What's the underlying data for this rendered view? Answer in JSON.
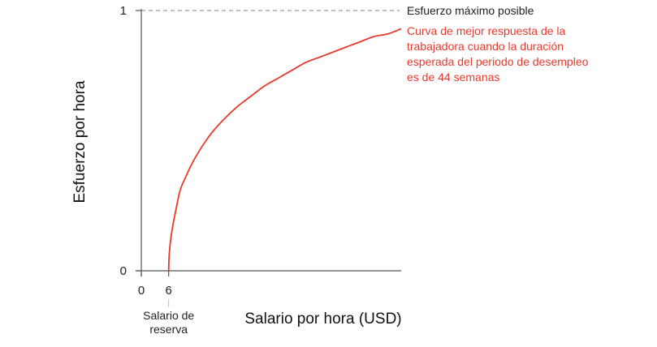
{
  "chart_data": {
    "type": "line",
    "title": "",
    "xlabel": "Salario por hora (USD)",
    "ylabel": "Esfuerzo por hora",
    "xlim": [
      0,
      57
    ],
    "ylim": [
      0,
      1
    ],
    "x_ticks": [
      0,
      6
    ],
    "y_ticks": [
      0,
      1
    ],
    "grid": false,
    "reference_line": {
      "y": 1,
      "label": "Esfuerzo máximo posible",
      "color": "#9a9a9a",
      "style": "dashed"
    },
    "reservation_wage": {
      "x": 6,
      "label_lines": [
        "Salario de",
        "reserva"
      ]
    },
    "series": [
      {
        "label_lines": [
          "Curva de mejor respuesta de la",
          "trabajadora cuando la duración",
          "esperada del periodo de desempleo",
          "es de 44 semanas"
        ],
        "color": "#e8392c",
        "x": [
          6,
          8,
          10,
          12,
          15,
          18,
          21,
          24,
          27,
          30,
          33,
          36,
          39,
          42,
          45,
          48,
          51,
          54,
          57
        ],
        "y": [
          0,
          0.27,
          0.37,
          0.44,
          0.52,
          0.58,
          0.63,
          0.67,
          0.71,
          0.74,
          0.77,
          0.8,
          0.82,
          0.84,
          0.86,
          0.88,
          0.9,
          0.91,
          0.93
        ]
      }
    ]
  },
  "colors": {
    "axis": "#555555",
    "text": "#222222",
    "curve": "#e8392c",
    "reference": "#9a9a9a"
  }
}
